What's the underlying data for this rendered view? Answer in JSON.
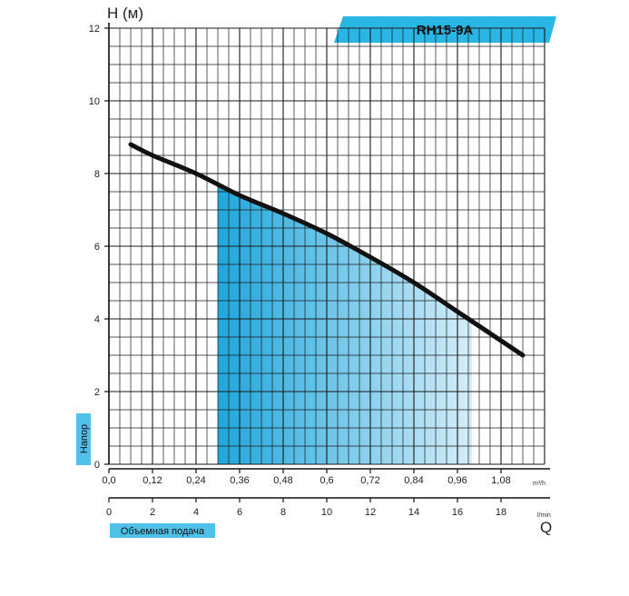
{
  "chart_data": {
    "type": "line",
    "title": "RH15-9A",
    "ylabel": "H (м)",
    "ylabel_badge": "Напор",
    "xlabel_badge": "Объемная подача",
    "xlabel_symbol": "Q",
    "x_unit_top": "m³/h",
    "x_unit_bottom": "l/min",
    "xlim": [
      0,
      1.2
    ],
    "ylim": [
      0,
      12
    ],
    "grid": true,
    "y_ticks": [
      "0",
      "2",
      "4",
      "6",
      "8",
      "10",
      "12"
    ],
    "x_ticks_top": [
      "0,0",
      "0,12",
      "0,24",
      "0,36",
      "0,48",
      "0,6",
      "0,72",
      "0,84",
      "0,96",
      "1,08"
    ],
    "x_ticks_bottom": [
      "0",
      "2",
      "4",
      "6",
      "8",
      "10",
      "12",
      "14",
      "16",
      "18"
    ],
    "series": [
      {
        "x": [
          0.06,
          0.12,
          0.24,
          0.36,
          0.48,
          0.6,
          0.72,
          0.84,
          0.96,
          1.08,
          1.14
        ],
        "y": [
          8.8,
          8.5,
          8.0,
          7.4,
          6.9,
          6.35,
          5.7,
          5.0,
          4.2,
          3.4,
          3.0
        ]
      }
    ],
    "operating_range": [
      0.3,
      1.0
    ],
    "colors": {
      "curve": "#111111",
      "fill_dark": "#1ea7dc",
      "fill_light": "#d4edf9",
      "banner": "#29b6e4",
      "badge": "#4fc1e9",
      "grid": "#1a1a1a"
    }
  }
}
